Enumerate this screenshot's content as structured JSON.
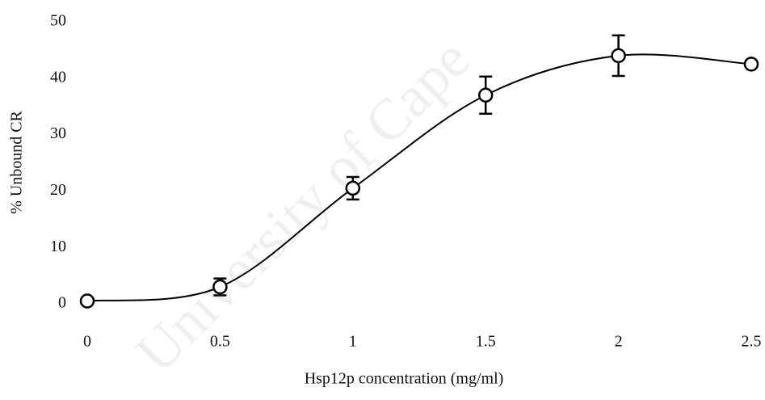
{
  "chart_data": {
    "type": "line",
    "xlabel": "Hsp12p concentration (mg/ml)",
    "ylabel": "% Unbound CR",
    "watermark": "University of Cape",
    "x": [
      0,
      0.5,
      1,
      1.5,
      2,
      2.5
    ],
    "series": [
      {
        "color": "#000000",
        "values": [
          0.5,
          3,
          20.5,
          37,
          44,
          42.5
        ],
        "errors": [
          null,
          1.5,
          2,
          3.3,
          3.6,
          null
        ]
      }
    ],
    "xlim": [
      0,
      2.5
    ],
    "ylim": [
      0,
      50
    ],
    "xticks": [
      0,
      0.5,
      1,
      1.5,
      2,
      2.5
    ],
    "yticks": [
      0,
      10,
      20,
      30,
      40,
      50
    ]
  }
}
